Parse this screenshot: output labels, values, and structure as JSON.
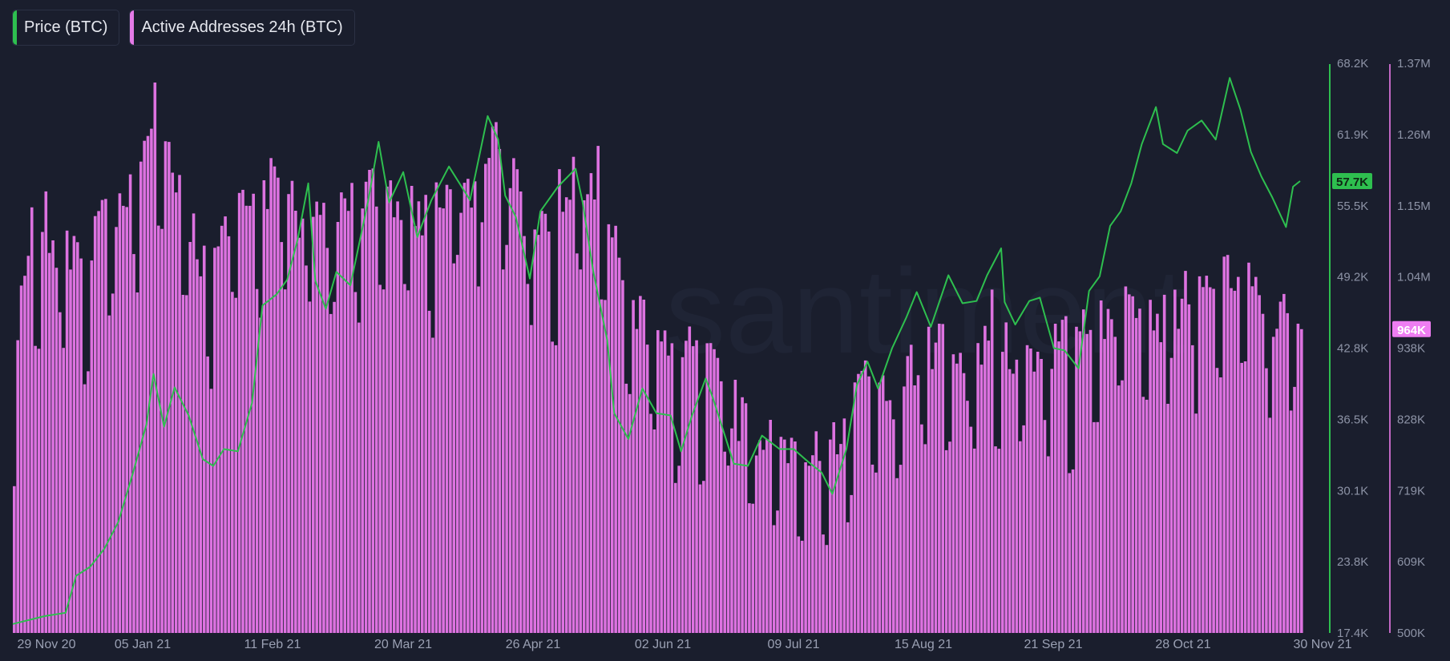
{
  "legend": [
    {
      "label": "Price (BTC)",
      "color": "#2ebf4f"
    },
    {
      "label": "Active Addresses 24h (BTC)",
      "color": "#e47ae7"
    }
  ],
  "watermark": "santiment",
  "colors": {
    "background": "#1a1e2d",
    "price": "#2ebf4f",
    "addresses": "#dd72e0",
    "gap": "#10131d"
  },
  "chart_data": {
    "type": "bar",
    "x_range": [
      "2020-11-29",
      "2021-11-30"
    ],
    "x_tick_labels": [
      "29 Nov 20",
      "05 Jan 21",
      "11 Feb 21",
      "20 Mar 21",
      "26 Apr 21",
      "02 Jun 21",
      "09 Jul 21",
      "15 Aug 21",
      "21 Sep 21",
      "28 Oct 21",
      "30 Nov 21"
    ],
    "price_axis": {
      "ticks": [
        "68.2K",
        "61.9K",
        "55.5K",
        "49.2K",
        "42.8K",
        "36.5K",
        "30.1K",
        "23.8K",
        "17.4K"
      ],
      "min": 17400,
      "max": 68200
    },
    "addresses_axis": {
      "ticks": [
        "1.37M",
        "1.26M",
        "1.15M",
        "1.04M",
        "938K",
        "828K",
        "719K",
        "609K",
        "500K"
      ],
      "min": 500000,
      "max": 1370000
    },
    "last_price_label": "57.7K",
    "last_addresses_label": "964K",
    "series": [
      {
        "name": "Price (BTC)",
        "type": "line",
        "color": "#2ebf4f",
        "points": [
          [
            "2020-11-29",
            18200
          ],
          [
            "2020-12-08",
            18900
          ],
          [
            "2020-12-14",
            19200
          ],
          [
            "2020-12-17",
            22500
          ],
          [
            "2020-12-21",
            23300
          ],
          [
            "2020-12-25",
            24900
          ],
          [
            "2020-12-29",
            27300
          ],
          [
            "2021-01-02",
            31500
          ],
          [
            "2021-01-06",
            36000
          ],
          [
            "2021-01-08",
            40500
          ],
          [
            "2021-01-11",
            35800
          ],
          [
            "2021-01-14",
            39300
          ],
          [
            "2021-01-18",
            36800
          ],
          [
            "2021-01-22",
            32900
          ],
          [
            "2021-01-25",
            32300
          ],
          [
            "2021-01-28",
            33800
          ],
          [
            "2021-02-01",
            33600
          ],
          [
            "2021-02-05",
            37900
          ],
          [
            "2021-02-08",
            46600
          ],
          [
            "2021-02-12",
            47600
          ],
          [
            "2021-02-15",
            48900
          ],
          [
            "2021-02-18",
            52500
          ],
          [
            "2021-02-21",
            57500
          ],
          [
            "2021-02-23",
            48800
          ],
          [
            "2021-02-26",
            46300
          ],
          [
            "2021-03-01",
            49600
          ],
          [
            "2021-03-05",
            48400
          ],
          [
            "2021-03-10",
            55900
          ],
          [
            "2021-03-13",
            61200
          ],
          [
            "2021-03-16",
            55800
          ],
          [
            "2021-03-20",
            58500
          ],
          [
            "2021-03-24",
            52700
          ],
          [
            "2021-03-28",
            56000
          ],
          [
            "2021-04-02",
            59000
          ],
          [
            "2021-04-08",
            56000
          ],
          [
            "2021-04-13",
            63500
          ],
          [
            "2021-04-16",
            61400
          ],
          [
            "2021-04-18",
            56400
          ],
          [
            "2021-04-21",
            54500
          ],
          [
            "2021-04-25",
            49000
          ],
          [
            "2021-04-28",
            55000
          ],
          [
            "2021-05-03",
            57200
          ],
          [
            "2021-05-08",
            58800
          ],
          [
            "2021-05-10",
            55800
          ],
          [
            "2021-05-13",
            49700
          ],
          [
            "2021-05-17",
            43500
          ],
          [
            "2021-05-19",
            37000
          ],
          [
            "2021-05-23",
            34700
          ],
          [
            "2021-05-27",
            39200
          ],
          [
            "2021-05-31",
            37000
          ],
          [
            "2021-06-04",
            36800
          ],
          [
            "2021-06-07",
            33600
          ],
          [
            "2021-06-10",
            36700
          ],
          [
            "2021-06-14",
            40100
          ],
          [
            "2021-06-16",
            38400
          ],
          [
            "2021-06-22",
            32500
          ],
          [
            "2021-06-26",
            32300
          ],
          [
            "2021-06-30",
            35000
          ],
          [
            "2021-07-05",
            33800
          ],
          [
            "2021-07-09",
            33800
          ],
          [
            "2021-07-13",
            32700
          ],
          [
            "2021-07-17",
            31700
          ],
          [
            "2021-07-20",
            29800
          ],
          [
            "2021-07-24",
            33800
          ],
          [
            "2021-07-27",
            39500
          ],
          [
            "2021-07-30",
            41600
          ],
          [
            "2021-08-02",
            39200
          ],
          [
            "2021-08-06",
            42800
          ],
          [
            "2021-08-10",
            45500
          ],
          [
            "2021-08-13",
            47800
          ],
          [
            "2021-08-17",
            44700
          ],
          [
            "2021-08-22",
            49300
          ],
          [
            "2021-08-26",
            46800
          ],
          [
            "2021-08-30",
            47000
          ],
          [
            "2021-09-02",
            49300
          ],
          [
            "2021-09-06",
            51700
          ],
          [
            "2021-09-07",
            46900
          ],
          [
            "2021-09-10",
            44900
          ],
          [
            "2021-09-14",
            47000
          ],
          [
            "2021-09-17",
            47300
          ],
          [
            "2021-09-21",
            42800
          ],
          [
            "2021-09-24",
            42600
          ],
          [
            "2021-09-28",
            41000
          ],
          [
            "2021-10-01",
            47900
          ],
          [
            "2021-10-04",
            49200
          ],
          [
            "2021-10-07",
            53700
          ],
          [
            "2021-10-10",
            55000
          ],
          [
            "2021-10-13",
            57500
          ],
          [
            "2021-10-16",
            61000
          ],
          [
            "2021-10-20",
            64300
          ],
          [
            "2021-10-22",
            61000
          ],
          [
            "2021-10-26",
            60200
          ],
          [
            "2021-10-29",
            62200
          ],
          [
            "2021-11-02",
            63100
          ],
          [
            "2021-11-06",
            61400
          ],
          [
            "2021-11-10",
            66900
          ],
          [
            "2021-11-13",
            64100
          ],
          [
            "2021-11-16",
            60300
          ],
          [
            "2021-11-19",
            58100
          ],
          [
            "2021-11-22",
            56300
          ],
          [
            "2021-11-26",
            53600
          ],
          [
            "2021-11-28",
            57200
          ],
          [
            "2021-11-30",
            57700
          ]
        ]
      },
      {
        "name": "Active Addresses 24h (BTC)",
        "type": "bar",
        "color": "#dd72e0",
        "points": [
          [
            "2020-11-29",
            900000
          ],
          [
            "2020-12-05",
            1160000
          ],
          [
            "2020-12-12",
            1090000
          ],
          [
            "2020-12-19",
            1100000
          ],
          [
            "2020-12-26",
            1140000
          ],
          [
            "2021-01-02",
            1180000
          ],
          [
            "2021-01-08",
            1310000
          ],
          [
            "2021-01-14",
            1210000
          ],
          [
            "2021-01-22",
            1060000
          ],
          [
            "2021-01-29",
            1130000
          ],
          [
            "2021-02-05",
            1170000
          ],
          [
            "2021-02-12",
            1200000
          ],
          [
            "2021-02-19",
            1140000
          ],
          [
            "2021-02-26",
            1110000
          ],
          [
            "2021-03-05",
            1150000
          ],
          [
            "2021-03-12",
            1180000
          ],
          [
            "2021-03-19",
            1150000
          ],
          [
            "2021-03-26",
            1140000
          ],
          [
            "2021-04-02",
            1180000
          ],
          [
            "2021-04-09",
            1180000
          ],
          [
            "2021-04-16",
            1270000
          ],
          [
            "2021-04-23",
            1150000
          ],
          [
            "2021-04-30",
            1130000
          ],
          [
            "2021-05-07",
            1210000
          ],
          [
            "2021-05-14",
            1200000
          ],
          [
            "2021-05-21",
            1030000
          ],
          [
            "2021-05-28",
            980000
          ],
          [
            "2021-06-04",
            910000
          ],
          [
            "2021-06-11",
            930000
          ],
          [
            "2021-06-18",
            880000
          ],
          [
            "2021-06-25",
            820000
          ],
          [
            "2021-07-02",
            800000
          ],
          [
            "2021-07-09",
            790000
          ],
          [
            "2021-07-16",
            760000
          ],
          [
            "2021-07-23",
            830000
          ],
          [
            "2021-07-30",
            900000
          ],
          [
            "2021-08-06",
            870000
          ],
          [
            "2021-08-13",
            920000
          ],
          [
            "2021-08-20",
            930000
          ],
          [
            "2021-08-27",
            890000
          ],
          [
            "2021-09-03",
            980000
          ],
          [
            "2021-09-10",
            930000
          ],
          [
            "2021-09-17",
            930000
          ],
          [
            "2021-09-24",
            950000
          ],
          [
            "2021-10-01",
            1000000
          ],
          [
            "2021-10-08",
            980000
          ],
          [
            "2021-10-15",
            1020000
          ],
          [
            "2021-10-22",
            980000
          ],
          [
            "2021-10-29",
            1030000
          ],
          [
            "2021-11-05",
            1010000
          ],
          [
            "2021-11-12",
            1060000
          ],
          [
            "2021-11-19",
            990000
          ],
          [
            "2021-11-26",
            980000
          ],
          [
            "2021-11-30",
            964000
          ]
        ]
      }
    ]
  }
}
